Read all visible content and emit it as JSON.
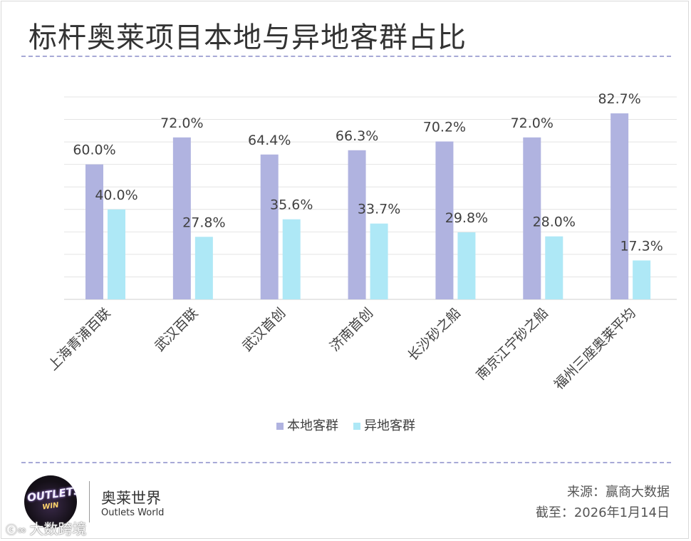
{
  "title": "标杆奥莱项目本地与异地客群占比",
  "colors": {
    "local": "#b0b3e0",
    "nonlocal": "#aee8f6",
    "dash": "#a7a9d6",
    "grid": "#e4e4e4"
  },
  "chart_data": {
    "type": "bar",
    "categories": [
      "上海青浦百联",
      "武汉百联",
      "武汉首创",
      "济南首创",
      "长沙砂之船",
      "南京江宁砂之船",
      "福州三座奥莱平均"
    ],
    "series": [
      {
        "name": "本地客群",
        "values": [
          60.0,
          72.0,
          64.4,
          66.3,
          70.2,
          72.0,
          82.7
        ],
        "labels": [
          "60.0%",
          "72.0%",
          "64.4%",
          "66.3%",
          "70.2%",
          "72.0%",
          "82.7%"
        ]
      },
      {
        "name": "异地客群",
        "values": [
          40.0,
          27.8,
          35.6,
          33.7,
          29.8,
          28.0,
          17.3
        ],
        "labels": [
          "40.0%",
          "27.8%",
          "35.6%",
          "33.7%",
          "29.8%",
          "28.0%",
          "17.3%"
        ]
      }
    ],
    "ylim": [
      0,
      90
    ],
    "grid": true,
    "legend": "bottom-center"
  },
  "footer": {
    "logo_text": "OUTLETS",
    "logo_sub": "WIN",
    "brand_cn": "奥莱世界",
    "brand_en": "Outlets World",
    "source": "来源：赢商大数据",
    "date": "截至：2026年1月14日",
    "watermark": "大数跨境",
    "watermark_icon": "ⓒ∞"
  }
}
